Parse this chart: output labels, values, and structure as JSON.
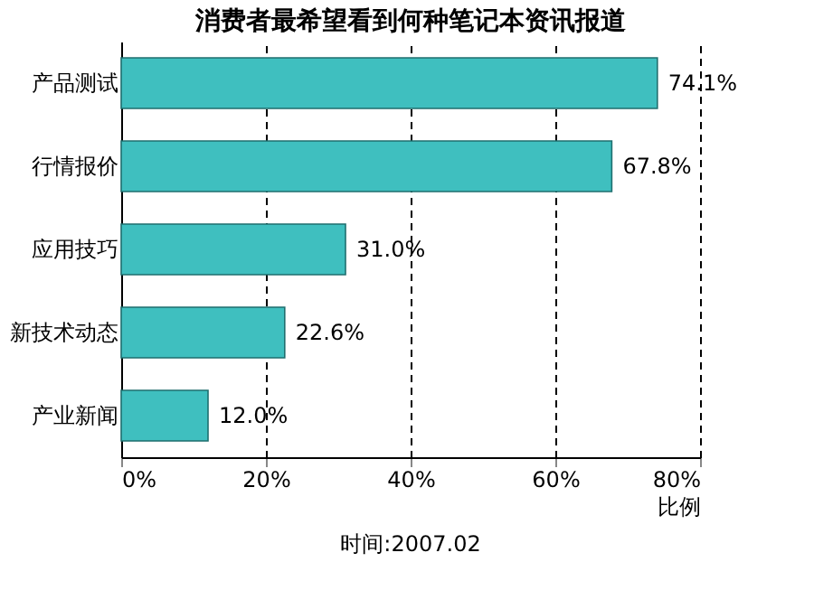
{
  "chart_data": {
    "type": "bar",
    "orientation": "horizontal",
    "title": "消费者最希望看到何种笔记本资讯报道",
    "xlabel": "比例",
    "categories": [
      "产品测试",
      "行情报价",
      "应用技巧",
      "新技术动态",
      "产业新闻"
    ],
    "values": [
      74.1,
      67.8,
      31.0,
      22.6,
      12.0
    ],
    "value_labels": [
      "74.1%",
      "67.8%",
      "31.0%",
      "22.6%",
      "12.0%"
    ],
    "color": "#3fbfbf",
    "xlim": [
      0,
      80
    ],
    "xticks": [
      {
        "value": 0,
        "label": "0%"
      },
      {
        "value": 20,
        "label": "20%"
      },
      {
        "value": 40,
        "label": "40%"
      },
      {
        "value": 60,
        "label": "60%"
      },
      {
        "value": 80,
        "label": "80%"
      }
    ],
    "grid": "x",
    "line_style": "dashed",
    "annotations": [
      "时间:2007.02"
    ]
  }
}
